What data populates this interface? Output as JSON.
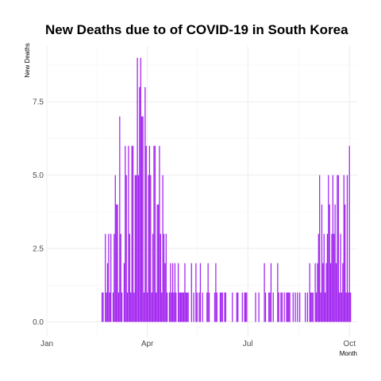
{
  "chart_data": {
    "type": "bar",
    "title": "New Deaths due to of COVID-19 in South Korea",
    "xlabel": "Month",
    "ylabel": "New Deaths",
    "x_range": [
      "2020-01-01",
      "2020-10-08"
    ],
    "ylim": [
      -0.5,
      9.4
    ],
    "x_ticks": [
      {
        "date": "2020-01-01",
        "label": "Jan"
      },
      {
        "date": "2020-04-01",
        "label": "Apr"
      },
      {
        "date": "2020-07-01",
        "label": "Jul"
      },
      {
        "date": "2020-10-01",
        "label": "Oct"
      }
    ],
    "y_ticks": [
      {
        "value": 0,
        "label": "0.0"
      },
      {
        "value": 2.5,
        "label": "2.5"
      },
      {
        "value": 5,
        "label": "5.0"
      },
      {
        "value": 7.5,
        "label": "7.5"
      }
    ],
    "grid": true,
    "bar_color": "#a020f0",
    "dates": [
      "2020-02-20",
      "2020-02-21",
      "2020-02-22",
      "2020-02-23",
      "2020-02-24",
      "2020-02-25",
      "2020-02-26",
      "2020-02-27",
      "2020-02-28",
      "2020-02-29",
      "2020-03-01",
      "2020-03-02",
      "2020-03-03",
      "2020-03-04",
      "2020-03-05",
      "2020-03-06",
      "2020-03-07",
      "2020-03-08",
      "2020-03-09",
      "2020-03-10",
      "2020-03-11",
      "2020-03-12",
      "2020-03-13",
      "2020-03-14",
      "2020-03-15",
      "2020-03-16",
      "2020-03-17",
      "2020-03-18",
      "2020-03-19",
      "2020-03-20",
      "2020-03-21",
      "2020-03-22",
      "2020-03-23",
      "2020-03-24",
      "2020-03-25",
      "2020-03-26",
      "2020-03-27",
      "2020-03-28",
      "2020-03-29",
      "2020-03-30",
      "2020-03-31",
      "2020-04-01",
      "2020-04-02",
      "2020-04-03",
      "2020-04-04",
      "2020-04-05",
      "2020-04-06",
      "2020-04-07",
      "2020-04-08",
      "2020-04-09",
      "2020-04-10",
      "2020-04-11",
      "2020-04-12",
      "2020-04-13",
      "2020-04-14",
      "2020-04-15",
      "2020-04-16",
      "2020-04-17",
      "2020-04-18",
      "2020-04-19",
      "2020-04-20",
      "2020-04-21",
      "2020-04-22",
      "2020-04-23",
      "2020-04-24",
      "2020-04-25",
      "2020-04-26",
      "2020-04-27",
      "2020-04-28",
      "2020-04-29",
      "2020-04-30",
      "2020-05-01",
      "2020-05-02",
      "2020-05-03",
      "2020-05-04",
      "2020-05-05",
      "2020-05-06",
      "2020-05-07",
      "2020-05-08",
      "2020-05-09",
      "2020-05-10",
      "2020-05-11",
      "2020-05-12",
      "2020-05-13",
      "2020-05-14",
      "2020-05-15",
      "2020-05-16",
      "2020-05-17",
      "2020-05-18",
      "2020-05-19",
      "2020-05-20",
      "2020-05-21",
      "2020-05-22",
      "2020-05-23",
      "2020-05-24",
      "2020-05-25",
      "2020-05-26",
      "2020-05-27",
      "2020-05-28",
      "2020-05-29",
      "2020-05-30",
      "2020-05-31",
      "2020-06-01",
      "2020-06-02",
      "2020-06-03",
      "2020-06-04",
      "2020-06-05",
      "2020-06-06",
      "2020-06-07",
      "2020-06-08",
      "2020-06-09",
      "2020-06-10",
      "2020-06-11",
      "2020-06-12",
      "2020-06-13",
      "2020-06-14",
      "2020-06-15",
      "2020-06-16",
      "2020-06-17",
      "2020-06-18",
      "2020-06-19",
      "2020-06-20",
      "2020-06-21",
      "2020-06-22",
      "2020-06-23",
      "2020-06-24",
      "2020-06-25",
      "2020-06-26",
      "2020-06-27",
      "2020-06-28",
      "2020-06-29",
      "2020-06-30",
      "2020-07-01",
      "2020-07-02",
      "2020-07-03",
      "2020-07-04",
      "2020-07-05",
      "2020-07-06",
      "2020-07-07",
      "2020-07-08",
      "2020-07-09",
      "2020-07-10",
      "2020-07-11",
      "2020-07-12",
      "2020-07-13",
      "2020-07-14",
      "2020-07-15",
      "2020-07-16",
      "2020-07-17",
      "2020-07-18",
      "2020-07-19",
      "2020-07-20",
      "2020-07-21",
      "2020-07-22",
      "2020-07-23",
      "2020-07-24",
      "2020-07-25",
      "2020-07-26",
      "2020-07-27",
      "2020-07-28",
      "2020-07-29",
      "2020-07-30",
      "2020-07-31",
      "2020-08-01",
      "2020-08-02",
      "2020-08-03",
      "2020-08-04",
      "2020-08-05",
      "2020-08-06",
      "2020-08-07",
      "2020-08-08",
      "2020-08-09",
      "2020-08-10",
      "2020-08-11",
      "2020-08-12",
      "2020-08-13",
      "2020-08-14",
      "2020-08-15",
      "2020-08-16",
      "2020-08-17",
      "2020-08-18",
      "2020-08-19",
      "2020-08-20",
      "2020-08-21",
      "2020-08-22",
      "2020-08-23",
      "2020-08-24",
      "2020-08-25",
      "2020-08-26",
      "2020-08-27",
      "2020-08-28",
      "2020-08-29",
      "2020-08-30",
      "2020-08-31",
      "2020-09-01",
      "2020-09-02",
      "2020-09-03",
      "2020-09-04",
      "2020-09-05",
      "2020-09-06",
      "2020-09-07",
      "2020-09-08",
      "2020-09-09",
      "2020-09-10",
      "2020-09-11",
      "2020-09-12",
      "2020-09-13",
      "2020-09-14",
      "2020-09-15",
      "2020-09-16",
      "2020-09-17",
      "2020-09-18",
      "2020-09-19",
      "2020-09-20",
      "2020-09-21",
      "2020-09-22",
      "2020-09-23",
      "2020-09-24",
      "2020-09-25",
      "2020-09-26",
      "2020-09-27",
      "2020-09-28",
      "2020-09-29",
      "2020-09-30",
      "2020-10-01",
      "2020-10-02"
    ],
    "values": [
      1,
      1,
      0,
      3,
      1,
      2,
      3,
      1,
      3,
      0,
      1,
      3,
      5,
      4,
      4,
      1,
      7,
      3,
      1,
      0,
      2,
      6,
      5,
      1,
      6,
      3,
      1,
      6,
      6,
      1,
      5,
      5,
      9,
      5,
      8,
      9,
      7,
      7,
      1,
      8,
      6,
      1,
      5,
      6,
      5,
      1,
      3,
      6,
      6,
      1,
      4,
      4,
      6,
      3,
      1,
      5,
      3,
      2,
      3,
      1,
      0,
      1,
      2,
      1,
      2,
      1,
      2,
      1,
      0,
      2,
      1,
      1,
      1,
      1,
      1,
      2,
      1,
      1,
      1,
      0,
      0,
      2,
      0,
      1,
      0,
      2,
      1,
      0,
      1,
      2,
      0,
      1,
      0,
      0,
      0,
      1,
      2,
      1,
      0,
      0,
      0,
      0,
      1,
      2,
      1,
      0,
      0,
      1,
      1,
      1,
      0,
      1,
      1,
      0,
      0,
      0,
      0,
      0,
      1,
      0,
      0,
      0,
      1,
      1,
      0,
      0,
      0,
      1,
      0,
      1,
      1,
      1,
      0,
      0,
      0,
      0,
      0,
      0,
      0,
      1,
      0,
      0,
      1,
      0,
      0,
      0,
      0,
      2,
      1,
      0,
      0,
      1,
      1,
      2,
      0,
      1,
      0,
      0,
      0,
      2,
      1,
      0,
      1,
      1,
      0,
      1,
      0,
      1,
      1,
      1,
      1,
      0,
      0,
      1,
      0,
      1,
      0,
      1,
      0,
      1,
      0,
      0,
      0,
      0,
      1,
      0,
      1,
      0,
      2,
      1,
      1,
      1,
      0,
      2,
      1,
      2,
      3,
      5,
      1,
      4,
      2,
      3,
      1,
      2,
      3,
      5,
      4,
      2,
      3,
      5,
      3,
      4,
      2,
      5,
      5,
      1,
      3,
      1,
      2,
      5,
      4,
      1,
      5,
      1,
      6,
      1
    ]
  }
}
